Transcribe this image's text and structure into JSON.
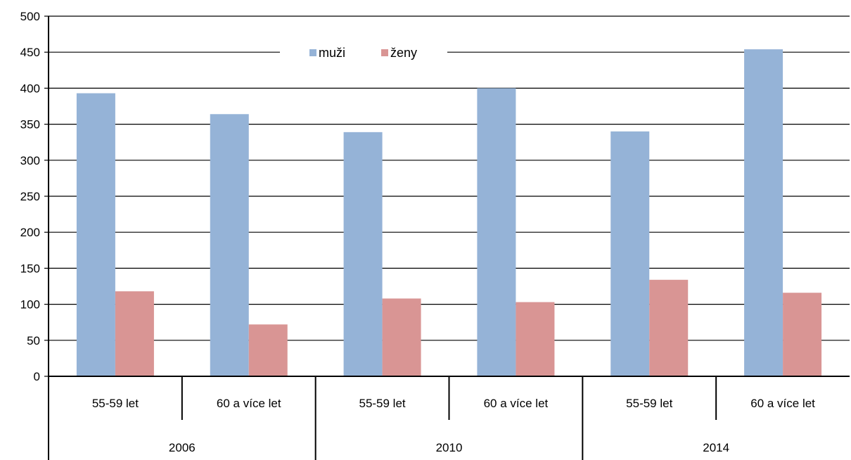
{
  "chart_data": {
    "type": "bar",
    "title": "",
    "xlabel": "",
    "ylabel": "",
    "ylim": [
      0,
      500
    ],
    "ytick_step": 50,
    "grid": true,
    "legend": {
      "placement": "top-center"
    },
    "groups": [
      {
        "label": "2006",
        "categories": [
          "55-59 let",
          "60 a více let"
        ]
      },
      {
        "label": "2010",
        "categories": [
          "55-59 let",
          "60 a více let"
        ]
      },
      {
        "label": "2014",
        "categories": [
          "55-59 let",
          "60 a více let"
        ]
      }
    ],
    "categories": [
      "55-59 let",
      "60 a více let",
      "55-59 let",
      "60 a více let",
      "55-59 let",
      "60 a více let"
    ],
    "series": [
      {
        "name": "muži",
        "color": "#95B3D7",
        "values": [
          393,
          364,
          339,
          400,
          340,
          454
        ]
      },
      {
        "name": "ženy",
        "color": "#D99594",
        "values": [
          118,
          72,
          108,
          103,
          134,
          116
        ]
      }
    ]
  }
}
